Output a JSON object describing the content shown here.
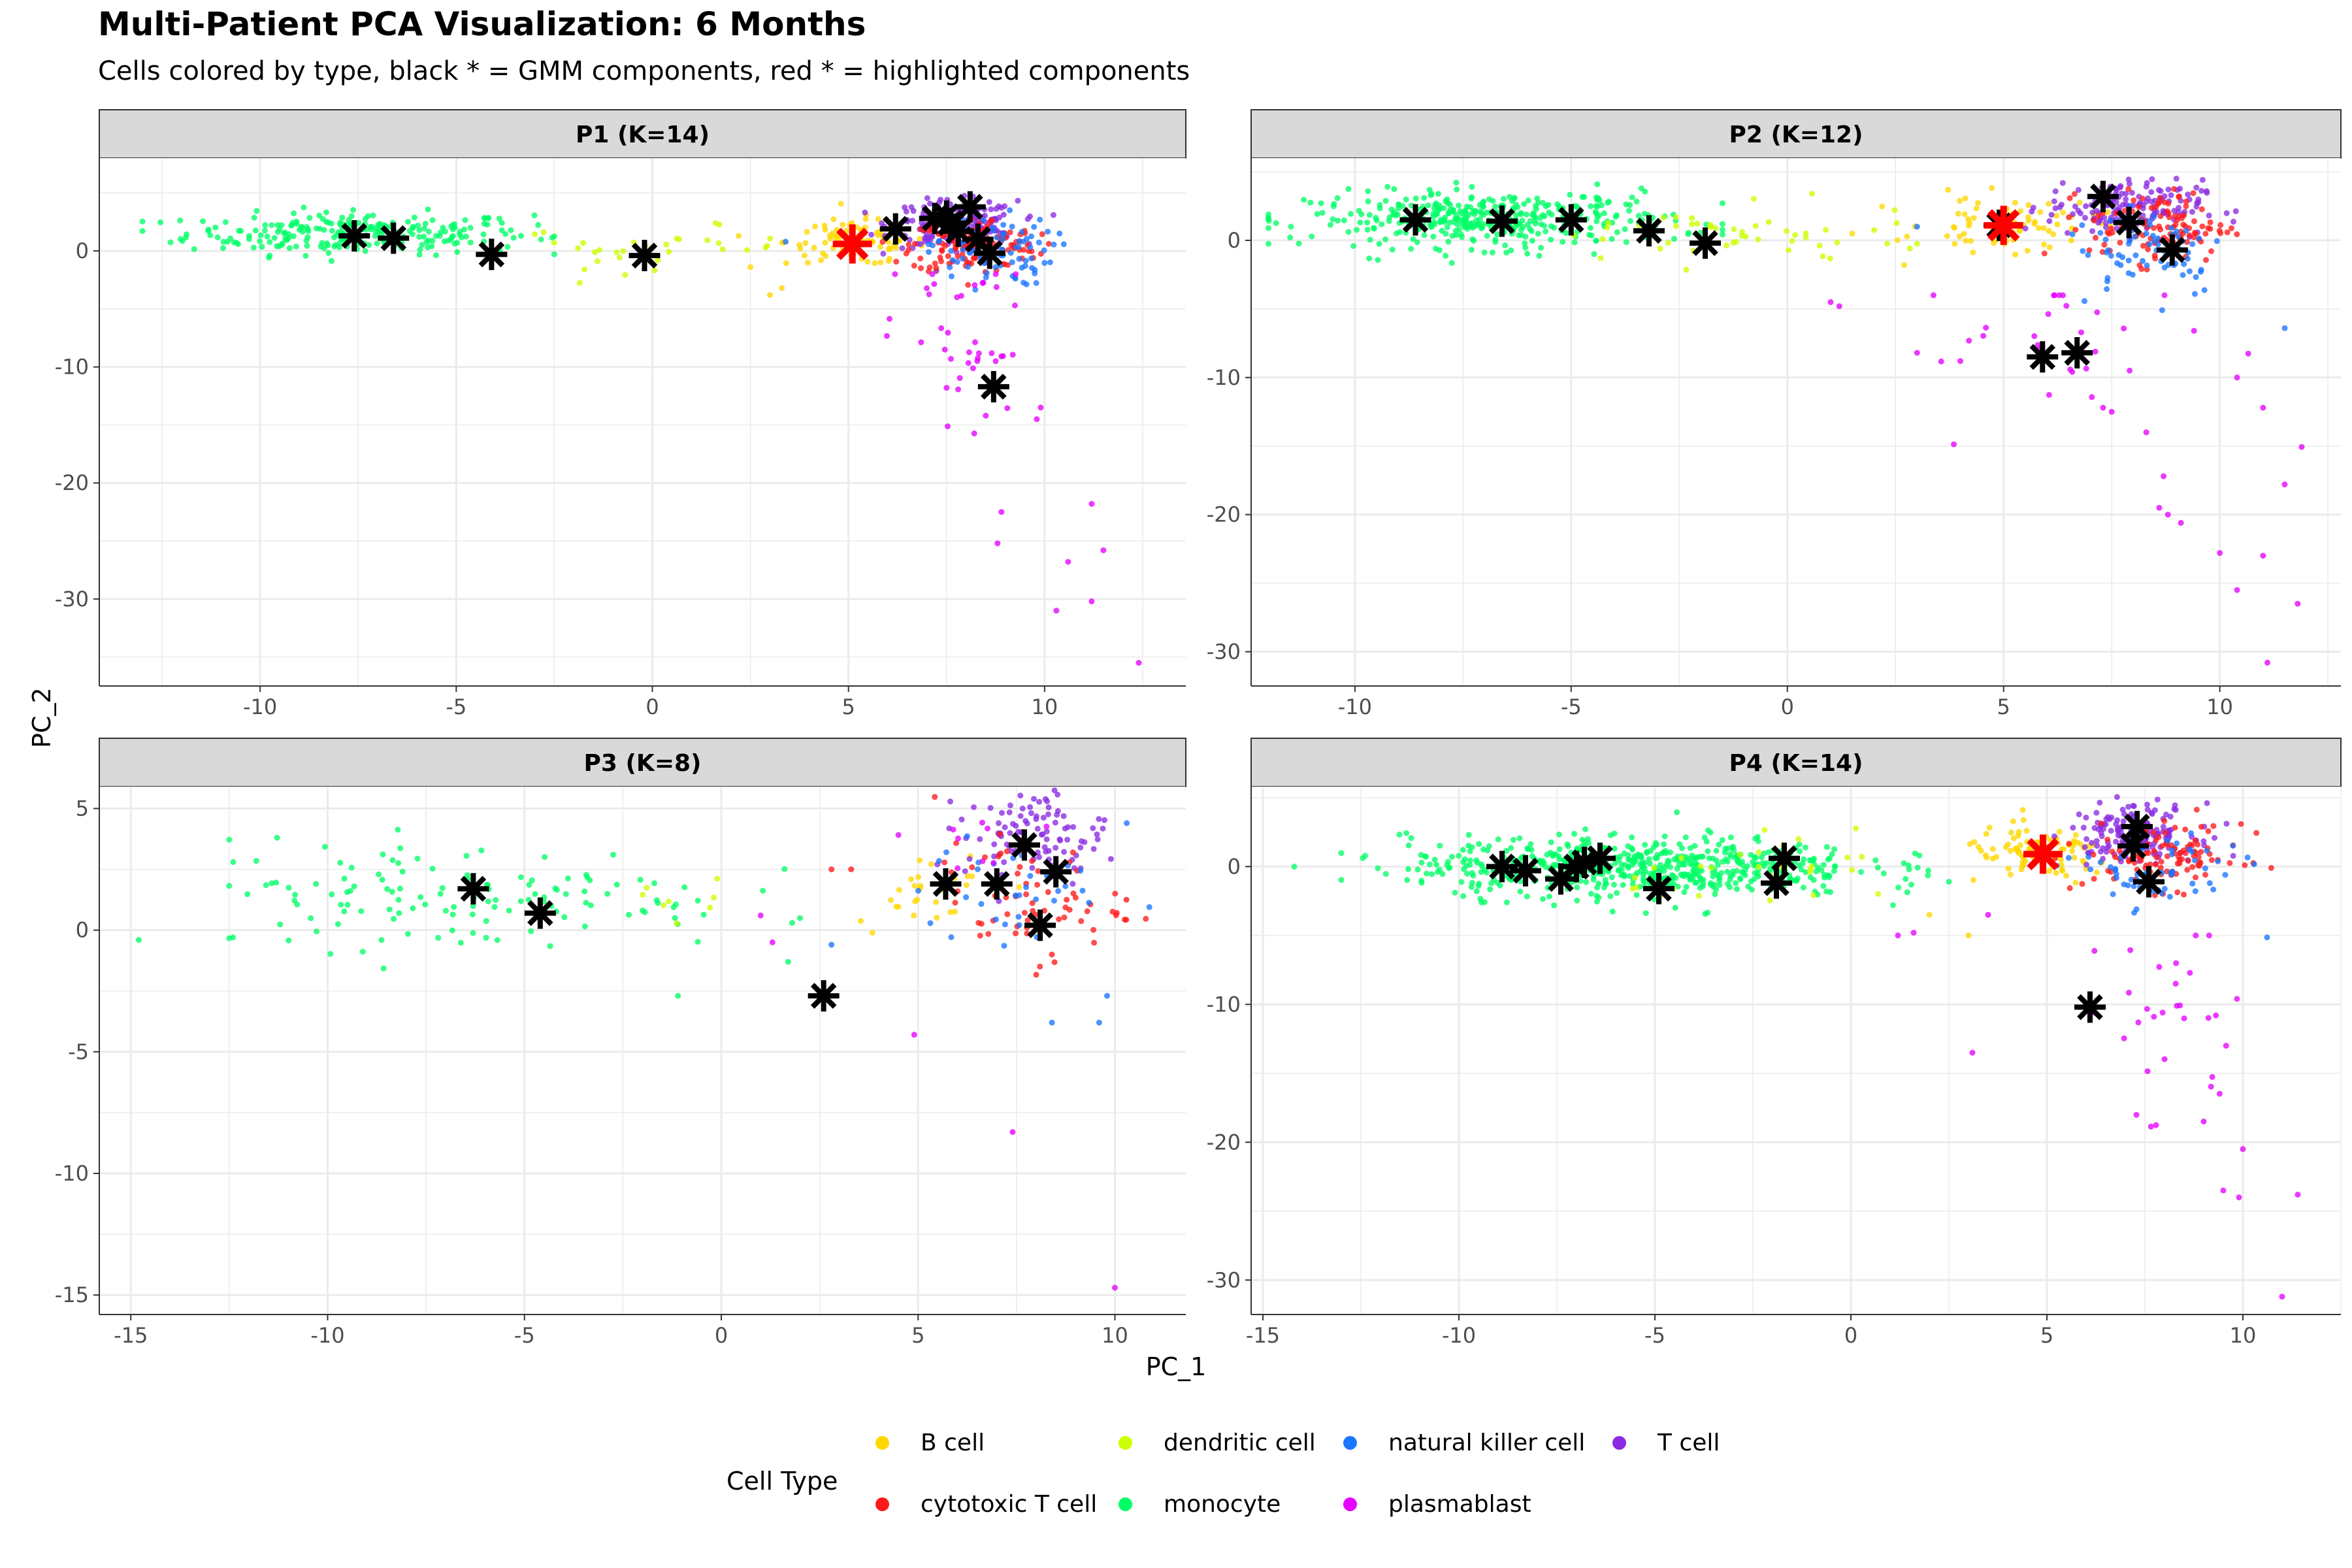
{
  "title": "Multi-Patient PCA Visualization: 6 Months",
  "subtitle": "Cells colored by type, black * = GMM components, red * = highlighted components",
  "xlabel": "PC_1",
  "ylabel": "PC_2",
  "legend": {
    "title": "Cell Type",
    "position": "bottom",
    "items": [
      {
        "label": "B cell",
        "color": "#FFD700"
      },
      {
        "label": "cytotoxic T cell",
        "color": "#FF1A1A"
      },
      {
        "label": "dendritic cell",
        "color": "#CCFF00"
      },
      {
        "label": "monocyte",
        "color": "#00FF66"
      },
      {
        "label": "natural killer cell",
        "color": "#1A75FF"
      },
      {
        "label": "plasmablast",
        "color": "#E600FF"
      },
      {
        "label": "T cell",
        "color": "#8A2BE2"
      }
    ]
  },
  "colors": {
    "strip_background": "#D9D9D9",
    "panel_border": "#333333",
    "grid": "#EBEBEB",
    "gmm_marker": "#000000",
    "highlight_marker": "#FF0000"
  },
  "chart_data": [
    {
      "type": "scatter",
      "panel": "P1 (K=14)",
      "grid": true,
      "xlim": [
        -14.1,
        13.6
      ],
      "ylim": [
        -37.5,
        8.0
      ],
      "xticks": [
        -10,
        -5,
        0,
        5,
        10
      ],
      "yticks": [
        0,
        -10,
        -20,
        -30
      ],
      "clusters": [
        {
          "celltype": "monocyte",
          "n": 260,
          "cx": -7.5,
          "cy": 1.5,
          "sx": 2.2,
          "sy": 0.9,
          "xmin": -13,
          "xmax": -2.5
        },
        {
          "celltype": "dendritic cell",
          "n": 30,
          "cx": 0.0,
          "cy": 0.3,
          "sx": 1.8,
          "sy": 0.9,
          "xmin": -3,
          "xmax": 3
        },
        {
          "celltype": "B cell",
          "n": 90,
          "cx": 5.2,
          "cy": 0.8,
          "sx": 0.9,
          "sy": 1.0
        },
        {
          "celltype": "T cell",
          "n": 200,
          "cx": 7.7,
          "cy": 2.3,
          "sx": 0.8,
          "sy": 1.0
        },
        {
          "celltype": "cytotoxic T cell",
          "n": 160,
          "cx": 8.2,
          "cy": 0.5,
          "sx": 0.8,
          "sy": 1.2
        },
        {
          "celltype": "natural killer cell",
          "n": 90,
          "cx": 8.6,
          "cy": 0.0,
          "sx": 0.8,
          "sy": 1.5
        },
        {
          "celltype": "plasmablast",
          "n": 40,
          "cx": 8.0,
          "cy": -8.0,
          "sx": 0.9,
          "sy": 5.0,
          "ymax": -2
        }
      ],
      "outliers": [
        {
          "celltype": "plasmablast",
          "points": [
            [
              12.4,
              -35.5
            ],
            [
              10.3,
              -31
            ],
            [
              11.2,
              -30.2
            ],
            [
              10.6,
              -26.8
            ],
            [
              11.5,
              -25.8
            ],
            [
              8.8,
              -25.2
            ],
            [
              8.9,
              -22.5
            ],
            [
              11.2,
              -21.8
            ],
            [
              9.8,
              -14.5
            ],
            [
              9.9,
              -13.5
            ],
            [
              8.5,
              -14.2
            ],
            [
              7.5,
              -11.8
            ]
          ]
        },
        {
          "celltype": "B cell",
          "points": [
            [
              3.0,
              -3.8
            ],
            [
              3.3,
              -3.2
            ],
            [
              2.5,
              -1.4
            ],
            [
              2.2,
              1.3
            ],
            [
              4.3,
              -0.8
            ]
          ]
        },
        {
          "celltype": "dendritic cell",
          "points": [
            [
              -1.4,
              -0.9
            ],
            [
              -2.5,
              0.7
            ]
          ]
        },
        {
          "celltype": "natural killer cell",
          "points": [
            [
              3.4,
              0.8
            ]
          ]
        }
      ],
      "gmm_components": [
        [
          -7.6,
          1.3
        ],
        [
          -6.6,
          1.1
        ],
        [
          -4.1,
          -0.3
        ],
        [
          -0.2,
          -0.4
        ],
        [
          6.2,
          1.9
        ],
        [
          7.5,
          3.0
        ],
        [
          7.8,
          1.7
        ],
        [
          8.1,
          3.8
        ],
        [
          7.6,
          2.4
        ],
        [
          8.6,
          -0.2
        ],
        [
          8.7,
          -11.7
        ],
        [
          8.3,
          1.0
        ],
        [
          7.2,
          2.8
        ]
      ],
      "highlighted_components": [
        [
          5.1,
          0.6
        ]
      ]
    },
    {
      "type": "scatter",
      "panel": "P2 (K=12)",
      "grid": true,
      "xlim": [
        -12.4,
        12.8
      ],
      "ylim": [
        -32.5,
        6.0
      ],
      "xticks": [
        -10,
        -5,
        0,
        5,
        10
      ],
      "yticks": [
        0,
        -10,
        -20,
        -30
      ],
      "clusters": [
        {
          "celltype": "monocyte",
          "n": 420,
          "cx": -6.8,
          "cy": 1.5,
          "sx": 2.1,
          "sy": 1.0,
          "xmin": -12,
          "xmax": -1.5
        },
        {
          "celltype": "dendritic cell",
          "n": 50,
          "cx": -1.5,
          "cy": 0.2,
          "sx": 2.4,
          "sy": 1.1,
          "xmin": -6,
          "xmax": 3
        },
        {
          "celltype": "B cell",
          "n": 80,
          "cx": 5.2,
          "cy": 1.2,
          "sx": 1.0,
          "sy": 1.0
        },
        {
          "celltype": "T cell",
          "n": 150,
          "cx": 7.8,
          "cy": 2.4,
          "sx": 0.9,
          "sy": 1.0
        },
        {
          "celltype": "cytotoxic T cell",
          "n": 120,
          "cx": 8.6,
          "cy": 1.0,
          "sx": 0.8,
          "sy": 1.3
        },
        {
          "celltype": "natural killer cell",
          "n": 70,
          "cx": 8.4,
          "cy": -0.5,
          "sx": 0.9,
          "sy": 1.8
        },
        {
          "celltype": "plasmablast",
          "n": 30,
          "cx": 6.8,
          "cy": -7.5,
          "sx": 1.8,
          "sy": 3.5,
          "ymax": -4
        }
      ],
      "outliers": [
        {
          "celltype": "plasmablast",
          "points": [
            [
              11.1,
              -30.8
            ],
            [
              11.8,
              -26.5
            ],
            [
              10.4,
              -25.5
            ],
            [
              11.0,
              -23.0
            ],
            [
              10.0,
              -22.8
            ],
            [
              9.1,
              -20.6
            ],
            [
              8.6,
              -19.5
            ],
            [
              8.8,
              -20.0
            ],
            [
              11.5,
              -17.8
            ],
            [
              8.7,
              -17.2
            ],
            [
              11.0,
              -12.2
            ],
            [
              7.3,
              -12.2
            ],
            [
              4.0,
              -8.8
            ],
            [
              3.0,
              -8.2
            ],
            [
              10.4,
              -10.0
            ],
            [
              8.3,
              -14.0
            ],
            [
              7.5,
              -12.5
            ],
            [
              1.0,
              -4.5
            ],
            [
              1.2,
              -4.8
            ]
          ]
        },
        {
          "celltype": "natural killer cell",
          "points": [
            [
              11.5,
              -6.4
            ],
            [
              3.0,
              1.0
            ]
          ]
        },
        {
          "celltype": "B cell",
          "points": [
            [
              2.7,
              -1.8
            ],
            [
              1.5,
              0.5
            ]
          ]
        }
      ],
      "gmm_components": [
        [
          -8.6,
          1.5
        ],
        [
          -6.6,
          1.4
        ],
        [
          -5.0,
          1.5
        ],
        [
          -3.2,
          0.7
        ],
        [
          -1.9,
          -0.2
        ],
        [
          7.3,
          3.2
        ],
        [
          7.9,
          1.3
        ],
        [
          8.9,
          -0.7
        ],
        [
          5.9,
          -8.5
        ],
        [
          6.7,
          -8.2
        ],
        [
          4.9,
          1.1
        ]
      ],
      "highlighted_components": [
        [
          5.0,
          1.1
        ]
      ]
    },
    {
      "type": "scatter",
      "panel": "P3 (K=8)",
      "grid": true,
      "xlim": [
        -15.8,
        11.8
      ],
      "ylim": [
        -15.8,
        5.9
      ],
      "xticks": [
        -15,
        -10,
        -5,
        0,
        5,
        10
      ],
      "yticks": [
        5,
        0,
        -5,
        -10,
        -15
      ],
      "clusters": [
        {
          "celltype": "monocyte",
          "n": 130,
          "cx": -6.5,
          "cy": 1.4,
          "sx": 3.4,
          "sy": 1.1,
          "xmin": -12.5,
          "xmax": 2
        },
        {
          "celltype": "dendritic cell",
          "n": 8,
          "cx": -1.0,
          "cy": 1.2,
          "sx": 1.5,
          "sy": 0.6
        },
        {
          "celltype": "B cell",
          "n": 30,
          "cx": 5.2,
          "cy": 1.8,
          "sx": 0.9,
          "sy": 0.8
        },
        {
          "celltype": "T cell",
          "n": 100,
          "cx": 8.0,
          "cy": 3.9,
          "sx": 0.9,
          "sy": 0.9
        },
        {
          "celltype": "cytotoxic T cell",
          "n": 70,
          "cx": 7.8,
          "cy": 1.2,
          "sx": 1.2,
          "sy": 1.2
        },
        {
          "celltype": "natural killer cell",
          "n": 35,
          "cx": 7.5,
          "cy": 1.5,
          "sx": 1.2,
          "sy": 1.3
        },
        {
          "celltype": "plasmablast",
          "n": 10,
          "cx": 6.5,
          "cy": 3.8,
          "sx": 1.0,
          "sy": 1.0
        }
      ],
      "outliers": [
        {
          "celltype": "monocyte",
          "points": [
            [
              -14.8,
              -0.4
            ],
            [
              -12.4,
              2.8
            ],
            [
              -1.1,
              -2.7
            ],
            [
              1.7,
              -1.3
            ],
            [
              1.8,
              0.3
            ]
          ]
        },
        {
          "celltype": "plasmablast",
          "points": [
            [
              10.0,
              -14.7
            ],
            [
              7.4,
              -8.3
            ],
            [
              4.9,
              -4.3
            ],
            [
              1.0,
              0.6
            ],
            [
              1.3,
              -0.5
            ]
          ]
        },
        {
          "celltype": "natural killer cell",
          "points": [
            [
              8.4,
              -3.8
            ],
            [
              9.6,
              -3.8
            ],
            [
              9.8,
              -2.7
            ],
            [
              10.3,
              4.4
            ],
            [
              2.8,
              -0.6
            ]
          ]
        },
        {
          "celltype": "cytotoxic T cell",
          "points": [
            [
              2.8,
              2.5
            ],
            [
              3.3,
              2.5
            ]
          ]
        }
      ],
      "gmm_components": [
        [
          -6.3,
          1.7
        ],
        [
          -4.6,
          0.7
        ],
        [
          2.6,
          -2.7
        ],
        [
          5.7,
          1.9
        ],
        [
          7.0,
          1.9
        ],
        [
          7.7,
          3.5
        ],
        [
          8.5,
          2.4
        ],
        [
          8.1,
          0.2
        ]
      ],
      "highlighted_components": []
    },
    {
      "type": "scatter",
      "panel": "P4 (K=14)",
      "grid": true,
      "xlim": [
        -15.3,
        12.5
      ],
      "ylim": [
        -32.5,
        5.8
      ],
      "xticks": [
        -15,
        -10,
        -5,
        0,
        5,
        10
      ],
      "yticks": [
        0,
        -10,
        -20,
        -30
      ],
      "clusters": [
        {
          "celltype": "monocyte",
          "n": 620,
          "cx": -5.5,
          "cy": 0.0,
          "sx": 2.9,
          "sy": 1.1,
          "xmin": -13,
          "xmax": 2.5
        },
        {
          "celltype": "dendritic cell",
          "n": 30,
          "cx": -1.5,
          "cy": -0.5,
          "sx": 2.0,
          "sy": 1.2
        },
        {
          "celltype": "B cell",
          "n": 90,
          "cx": 4.8,
          "cy": 0.8,
          "sx": 1.0,
          "sy": 1.0
        },
        {
          "celltype": "T cell",
          "n": 160,
          "cx": 7.2,
          "cy": 2.5,
          "sx": 0.8,
          "sy": 1.0
        },
        {
          "celltype": "cytotoxic T cell",
          "n": 110,
          "cx": 8.0,
          "cy": 0.8,
          "sx": 1.0,
          "sy": 1.2
        },
        {
          "celltype": "natural killer cell",
          "n": 60,
          "cx": 7.8,
          "cy": -0.6,
          "sx": 1.1,
          "sy": 1.5
        },
        {
          "celltype": "plasmablast",
          "n": 30,
          "cx": 8.0,
          "cy": -12.0,
          "sx": 1.1,
          "sy": 4.0,
          "ymax": -5
        }
      ],
      "outliers": [
        {
          "celltype": "plasmablast",
          "points": [
            [
              11.0,
              -31.2
            ],
            [
              10.0,
              -20.5
            ],
            [
              11.4,
              -23.8
            ],
            [
              9.5,
              -23.5
            ],
            [
              9.9,
              -24.0
            ],
            [
              9.0,
              -18.5
            ],
            [
              3.1,
              -13.5
            ],
            [
              1.2,
              -5.0
            ],
            [
              1.6,
              -4.8
            ],
            [
              3.5,
              -3.5
            ]
          ]
        },
        {
          "celltype": "monocyte",
          "points": [
            [
              -14.2,
              0.0
            ]
          ]
        },
        {
          "celltype": "B cell",
          "points": [
            [
              2.0,
              -3.5
            ],
            [
              3.0,
              -5.0
            ]
          ]
        }
      ],
      "gmm_components": [
        [
          -8.9,
          0.0
        ],
        [
          -8.3,
          -0.3
        ],
        [
          -7.4,
          -0.9
        ],
        [
          -7.0,
          0.0
        ],
        [
          -6.8,
          0.3
        ],
        [
          -6.4,
          0.6
        ],
        [
          -4.9,
          -1.6
        ],
        [
          -1.9,
          -1.2
        ],
        [
          -1.7,
          0.6
        ],
        [
          6.1,
          -10.2
        ],
        [
          7.3,
          2.9
        ],
        [
          7.2,
          1.5
        ],
        [
          7.6,
          -1.1
        ]
      ],
      "highlighted_components": [
        [
          4.9,
          0.9
        ]
      ]
    }
  ]
}
